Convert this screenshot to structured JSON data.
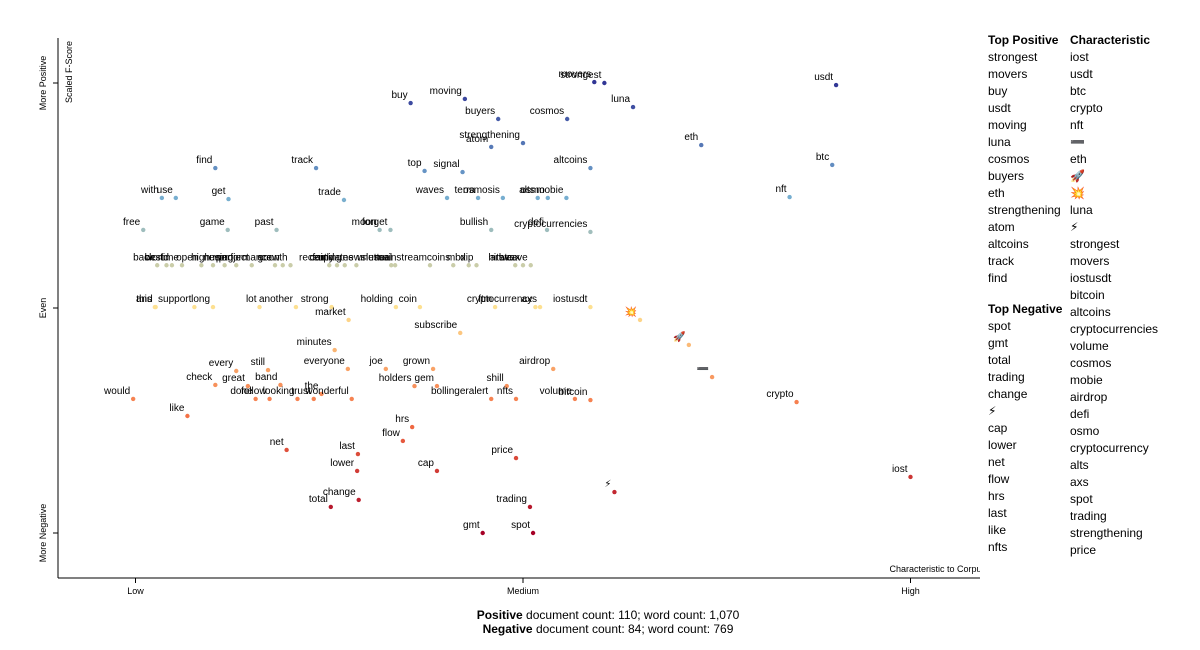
{
  "chart_data": {
    "type": "scatter",
    "y_label": "Scaled F-Score",
    "x_label": "Characteristic to Corpus",
    "xlim": [
      -0.1,
      1.1
    ],
    "ylim": [
      -1.2,
      1.2
    ],
    "xticks": [
      {
        "value": 0,
        "label": "Low"
      },
      {
        "value": 0.5,
        "label": "Medium"
      },
      {
        "value": 1,
        "label": "High"
      }
    ],
    "yticks": [
      {
        "value": -1,
        "label": "More Negative"
      },
      {
        "value": 0,
        "label": "Even"
      },
      {
        "value": 1,
        "label": "More Positive"
      }
    ],
    "color_scale": [
      "#a50026",
      "#f46d43",
      "#fee090",
      "#74add1",
      "#313695"
    ],
    "terms": [
      "usdt",
      "movers",
      "strongest",
      "buy",
      "moving",
      "luna",
      "buyers",
      "cosmos",
      "eth",
      "atom",
      "strengthening",
      "altcoins",
      "find",
      "track",
      "top",
      "signal",
      "btc",
      "with",
      "use",
      "get",
      "trade",
      "waves",
      "terra",
      "osmosis",
      "alts",
      "osmo",
      "mobie",
      "nft",
      "free",
      "game",
      "past",
      "moon",
      "forget",
      "bullish",
      "defi",
      "cryptocurrencies",
      "back",
      "world",
      "best",
      "time",
      "open",
      "high",
      "new",
      "using",
      "project",
      "performance",
      "soon",
      "growth",
      "fair",
      "recently",
      "coming",
      "updates",
      "newsletter",
      "unusual",
      "mainstream",
      "coins",
      "mbx",
      "dip",
      "hitbtc",
      "avax",
      "arweave",
      "and",
      "this",
      "support",
      "long",
      "lot",
      "another",
      "strong",
      "market",
      "holding",
      "coin",
      "ftm",
      "cryptocurrency",
      "axs",
      "iostusdt",
      "subscribe",
      "minutes",
      "💥",
      "🚀",
      "➖",
      "crypto",
      "iost",
      "every",
      "check",
      "still",
      "great",
      "band",
      "the",
      "everyone",
      "joe",
      "grown",
      "airdrop",
      "shill",
      "volume",
      "bitcoin",
      "would",
      "like",
      "done",
      "follow",
      "looking",
      "trust",
      "wonderful",
      "holders",
      "gem",
      "bollingeralert",
      "nfts",
      "hrs",
      "flow",
      "net",
      "last",
      "lower",
      "cap",
      "price",
      "⚡",
      "total",
      "change",
      "trading",
      "gmt",
      "spot"
    ],
    "x": [
      0.904,
      0.592,
      0.605,
      0.355,
      0.425,
      0.642,
      0.468,
      0.557,
      0.73,
      0.459,
      0.5,
      0.587,
      0.103,
      0.233,
      0.373,
      0.422,
      0.899,
      0.034,
      0.052,
      0.12,
      0.269,
      0.402,
      0.442,
      0.474,
      0.519,
      0.532,
      0.556,
      0.844,
      0.01,
      0.119,
      0.182,
      0.315,
      0.329,
      0.459,
      0.531,
      0.587,
      0.028,
      0.047,
      0.04,
      0.06,
      0.085,
      0.1,
      0.115,
      0.13,
      0.15,
      0.18,
      0.19,
      0.2,
      0.25,
      0.26,
      0.27,
      0.285,
      0.33,
      0.335,
      0.38,
      0.41,
      0.43,
      0.44,
      0.49,
      0.5,
      0.51,
      0.026,
      0.025,
      0.076,
      0.1,
      0.16,
      0.207,
      0.253,
      0.275,
      0.336,
      0.367,
      0.464,
      0.516,
      0.522,
      0.587,
      0.419,
      0.257,
      0.651,
      0.714,
      0.744,
      0.853,
      1.0,
      0.13,
      0.103,
      0.171,
      0.145,
      0.187,
      0.24,
      0.274,
      0.323,
      0.384,
      0.539,
      0.479,
      0.567,
      0.587,
      -0.003,
      0.067,
      0.155,
      0.173,
      0.209,
      0.23,
      0.279,
      0.36,
      0.389,
      0.459,
      0.491,
      0.357,
      0.345,
      0.195,
      0.287,
      0.286,
      0.389,
      0.491,
      0.618,
      0.252,
      0.288,
      0.509,
      0.448,
      0.513
    ],
    "y": [
      0.991,
      1.004,
      1.0,
      0.911,
      0.929,
      0.893,
      0.84,
      0.84,
      0.724,
      0.716,
      0.733,
      0.622,
      0.622,
      0.622,
      0.609,
      0.604,
      0.636,
      0.489,
      0.489,
      0.484,
      0.48,
      0.489,
      0.489,
      0.489,
      0.489,
      0.489,
      0.489,
      0.493,
      0.347,
      0.347,
      0.347,
      0.347,
      0.347,
      0.347,
      0.347,
      0.338,
      0.19,
      0.19,
      0.19,
      0.19,
      0.19,
      0.19,
      0.19,
      0.19,
      0.19,
      0.19,
      0.19,
      0.19,
      0.19,
      0.19,
      0.19,
      0.19,
      0.19,
      0.19,
      0.19,
      0.19,
      0.19,
      0.19,
      0.19,
      0.19,
      0.19,
      0.004,
      0.004,
      0.004,
      0.004,
      0.004,
      0.004,
      0.004,
      -0.053,
      0.004,
      0.004,
      0.004,
      0.004,
      0.004,
      0.004,
      -0.111,
      -0.187,
      -0.053,
      -0.164,
      -0.307,
      -0.418,
      -0.751,
      -0.28,
      -0.342,
      -0.276,
      -0.347,
      -0.342,
      -0.382,
      -0.271,
      -0.271,
      -0.271,
      -0.271,
      -0.347,
      -0.404,
      -0.409,
      -0.404,
      -0.48,
      -0.404,
      -0.404,
      -0.404,
      -0.404,
      -0.404,
      -0.347,
      -0.347,
      -0.404,
      -0.404,
      -0.529,
      -0.591,
      -0.631,
      -0.649,
      -0.724,
      -0.724,
      -0.667,
      -0.818,
      -0.884,
      -0.853,
      -0.884,
      -1.0,
      -1.0
    ]
  },
  "side": {
    "top_positive": {
      "title": "Top Positive",
      "items": [
        "strongest",
        "movers",
        "buy",
        "usdt",
        "moving",
        "luna",
        "cosmos",
        "buyers",
        "eth",
        "strengthening",
        "atom",
        "altcoins",
        "track",
        "find"
      ]
    },
    "characteristic": {
      "title": "Characteristic",
      "items": [
        "iost",
        "usdt",
        "btc",
        "crypto",
        "nft",
        "➖",
        "eth",
        "🚀",
        "💥",
        "luna",
        "⚡",
        "strongest",
        "movers",
        "iostusdt",
        "bitcoin",
        "altcoins",
        "cryptocurrencies",
        "volume",
        "cosmos",
        "mobie",
        "airdrop",
        "defi",
        "osmo",
        "cryptocurrency",
        "alts",
        "axs",
        "spot",
        "trading",
        "strengthening",
        "price"
      ]
    },
    "top_negative": {
      "title": "Top Negative",
      "items": [
        "spot",
        "gmt",
        "total",
        "trading",
        "change",
        "⚡",
        "cap",
        "lower",
        "net",
        "flow",
        "hrs",
        "last",
        "like",
        "nfts"
      ]
    }
  },
  "footer": {
    "positive": {
      "label": "Positive",
      "text": " document count: 110; word count: 1,070"
    },
    "negative": {
      "label": "Negative",
      "text": " document count: 84; word count: 769"
    }
  }
}
